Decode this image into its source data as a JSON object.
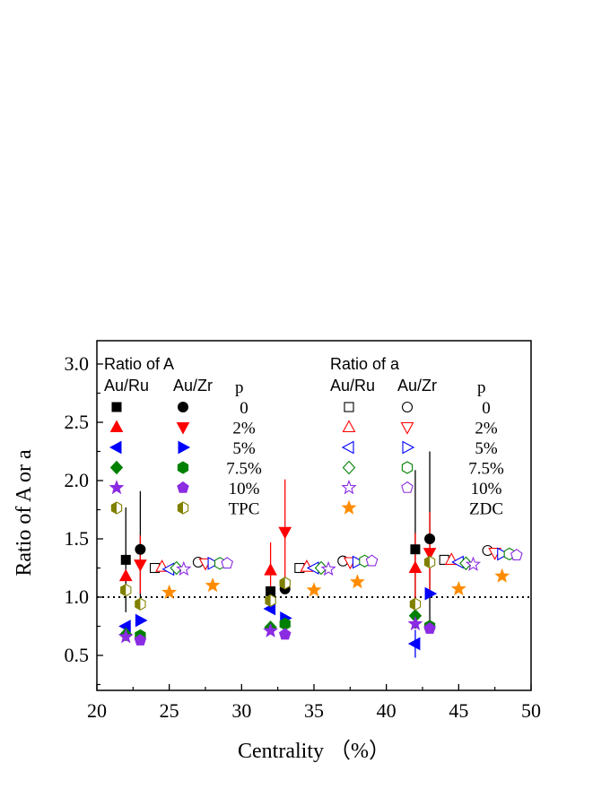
{
  "chart_data": {
    "type": "scatter",
    "xlabel": "Centrality （%）",
    "ylabel": "Ratio of A or a",
    "xlim": [
      20,
      50
    ],
    "ylim": [
      0.2,
      3.2
    ],
    "xticks": [
      20,
      25,
      30,
      35,
      40,
      45,
      50
    ],
    "yticks": [
      0.5,
      1.0,
      1.5,
      2.0,
      2.5,
      3.0
    ],
    "xtick_labels": [
      "20",
      "25",
      "30",
      "35",
      "40",
      "45",
      "50"
    ],
    "ytick_labels": [
      "0.5",
      "1.0",
      "1.5",
      "2.0",
      "2.5",
      "3.0"
    ],
    "reference_line": {
      "y": 1.0,
      "style": "dotted"
    },
    "grid": false,
    "legend_A": {
      "title": "Ratio of A",
      "col1": "Au/Ru",
      "col2": "Au/Zr",
      "col3": "p",
      "rows": [
        {
          "label": "0",
          "color": "#000000",
          "ru_marker": "square",
          "zr_marker": "circle"
        },
        {
          "label": "2%",
          "color": "#ff0000",
          "ru_marker": "triangle-up",
          "zr_marker": "triangle-down"
        },
        {
          "label": "5%",
          "color": "#0000ff",
          "ru_marker": "triangle-left",
          "zr_marker": "triangle-right"
        },
        {
          "label": "7.5%",
          "color": "#008000",
          "ru_marker": "diamond",
          "zr_marker": "hexagon"
        },
        {
          "label": "10%",
          "color": "#8b2be2",
          "ru_marker": "star",
          "zr_marker": "pentagon"
        },
        {
          "label": "TPC",
          "color": "#808000",
          "ru_marker": "hexagon-half",
          "zr_marker": "hexagon-half"
        }
      ]
    },
    "legend_a": {
      "title": "Ratio of a",
      "col1": "Au/Ru",
      "col2": "Au/Zr",
      "col3": "p",
      "rows": [
        {
          "label": "0",
          "color": "#000000",
          "ru_marker": "square",
          "zr_marker": "circle"
        },
        {
          "label": "2%",
          "color": "#ff0000",
          "ru_marker": "triangle-up",
          "zr_marker": "triangle-down"
        },
        {
          "label": "5%",
          "color": "#0000ff",
          "ru_marker": "triangle-left",
          "zr_marker": "triangle-right"
        },
        {
          "label": "7.5%",
          "color": "#008000",
          "ru_marker": "diamond",
          "zr_marker": "hexagon"
        },
        {
          "label": "10%",
          "color": "#8b2be2",
          "ru_marker": "star",
          "zr_marker": "pentagon"
        },
        {
          "label": "ZDC",
          "color": "#ff8c00",
          "ru_marker": "star",
          "zr_marker": ""
        }
      ]
    },
    "points": [
      {
        "series": "A Au/Ru p=0",
        "marker": "square",
        "fill": "solid",
        "color": "#000000",
        "x": 22,
        "y": 1.32,
        "err": 0.45
      },
      {
        "series": "A Au/Ru p=2%",
        "marker": "triangle-up",
        "fill": "solid",
        "color": "#ff0000",
        "x": 22,
        "y": 1.18
      },
      {
        "series": "A Au/Ru p=5%",
        "marker": "triangle-left",
        "fill": "solid",
        "color": "#0000ff",
        "x": 22,
        "y": 0.75
      },
      {
        "series": "A Au/Ru p=7.5%",
        "marker": "diamond",
        "fill": "solid",
        "color": "#008000",
        "x": 22,
        "y": 0.68
      },
      {
        "series": "A Au/Ru p=10%",
        "marker": "star",
        "fill": "solid",
        "color": "#8b2be2",
        "x": 22,
        "y": 0.66
      },
      {
        "series": "A Au/Ru TPC",
        "marker": "hexagon-half",
        "fill": "half",
        "color": "#808000",
        "x": 22,
        "y": 1.06
      },
      {
        "series": "A Au/Zr p=0",
        "marker": "circle",
        "fill": "solid",
        "color": "#000000",
        "x": 23,
        "y": 1.41,
        "err": 0.5
      },
      {
        "series": "A Au/Zr p=2%",
        "marker": "triangle-down",
        "fill": "solid",
        "color": "#ff0000",
        "x": 23,
        "y": 1.28,
        "err": 0.25
      },
      {
        "series": "A Au/Zr p=5%",
        "marker": "triangle-right",
        "fill": "solid",
        "color": "#0000ff",
        "x": 23,
        "y": 0.8
      },
      {
        "series": "A Au/Zr p=7.5%",
        "marker": "hexagon",
        "fill": "solid",
        "color": "#008000",
        "x": 23,
        "y": 0.67
      },
      {
        "series": "A Au/Zr p=10%",
        "marker": "pentagon",
        "fill": "solid",
        "color": "#8b2be2",
        "x": 23,
        "y": 0.63
      },
      {
        "series": "A Au/Zr TPC",
        "marker": "hexagon-half",
        "fill": "half",
        "color": "#808000",
        "x": 23,
        "y": 0.94
      },
      {
        "series": "a Au/Ru p=0",
        "marker": "square",
        "fill": "open",
        "color": "#000000",
        "x": 24,
        "y": 1.25
      },
      {
        "series": "a Au/Ru p=2%",
        "marker": "triangle-up",
        "fill": "open",
        "color": "#ff0000",
        "x": 24.5,
        "y": 1.26
      },
      {
        "series": "a Au/Ru p=5%",
        "marker": "triangle-left",
        "fill": "open",
        "color": "#0000ff",
        "x": 25,
        "y": 1.24
      },
      {
        "series": "a Au/Ru p=7.5%",
        "marker": "diamond",
        "fill": "open",
        "color": "#008000",
        "x": 25.5,
        "y": 1.25
      },
      {
        "series": "a Au/Ru p=10%",
        "marker": "star",
        "fill": "open",
        "color": "#8b2be2",
        "x": 26,
        "y": 1.24
      },
      {
        "series": "a Au/Ru ZDC",
        "marker": "star",
        "fill": "solid",
        "color": "#ff8c00",
        "x": 25,
        "y": 1.04
      },
      {
        "series": "a Au/Zr p=0",
        "marker": "circle",
        "fill": "open",
        "color": "#000000",
        "x": 27,
        "y": 1.3
      },
      {
        "series": "a Au/Zr p=2%",
        "marker": "triangle-down",
        "fill": "open",
        "color": "#ff0000",
        "x": 27.5,
        "y": 1.29
      },
      {
        "series": "a Au/Zr p=5%",
        "marker": "triangle-right",
        "fill": "open",
        "color": "#0000ff",
        "x": 28,
        "y": 1.29
      },
      {
        "series": "a Au/Zr p=7.5%",
        "marker": "hexagon",
        "fill": "open",
        "color": "#008000",
        "x": 28.5,
        "y": 1.29
      },
      {
        "series": "a Au/Zr p=10%",
        "marker": "pentagon",
        "fill": "open",
        "color": "#8b2be2",
        "x": 29,
        "y": 1.29
      },
      {
        "series": "a Au/Zr ZDC",
        "marker": "star",
        "fill": "solid",
        "color": "#ff8c00",
        "x": 28,
        "y": 1.1
      },
      {
        "series": "A Au/Ru p=0",
        "marker": "square",
        "fill": "solid",
        "color": "#000000",
        "x": 32,
        "y": 1.05
      },
      {
        "series": "A Au/Ru p=2%",
        "marker": "triangle-up",
        "fill": "solid",
        "color": "#ff0000",
        "x": 32,
        "y": 1.23,
        "err": 0.24
      },
      {
        "series": "A Au/Ru p=5%",
        "marker": "triangle-left",
        "fill": "solid",
        "color": "#0000ff",
        "x": 32,
        "y": 0.9
      },
      {
        "series": "A Au/Ru p=7.5%",
        "marker": "diamond",
        "fill": "solid",
        "color": "#008000",
        "x": 32,
        "y": 0.74
      },
      {
        "series": "A Au/Ru p=10%",
        "marker": "star",
        "fill": "solid",
        "color": "#8b2be2",
        "x": 32,
        "y": 0.71
      },
      {
        "series": "A Au/Ru TPC",
        "marker": "hexagon-half",
        "fill": "half",
        "color": "#808000",
        "x": 32,
        "y": 0.97
      },
      {
        "series": "A Au/Zr p=0",
        "marker": "circle",
        "fill": "solid",
        "color": "#000000",
        "x": 33,
        "y": 1.07
      },
      {
        "series": "A Au/Zr p=2%",
        "marker": "triangle-down",
        "fill": "solid",
        "color": "#ff0000",
        "x": 33,
        "y": 1.56,
        "err": 0.45
      },
      {
        "series": "A Au/Zr p=5%",
        "marker": "triangle-right",
        "fill": "solid",
        "color": "#0000ff",
        "x": 33,
        "y": 0.82
      },
      {
        "series": "A Au/Zr p=7.5%",
        "marker": "hexagon",
        "fill": "solid",
        "color": "#008000",
        "x": 33,
        "y": 0.77
      },
      {
        "series": "A Au/Zr p=10%",
        "marker": "pentagon",
        "fill": "solid",
        "color": "#8b2be2",
        "x": 33,
        "y": 0.68
      },
      {
        "series": "A Au/Zr TPC",
        "marker": "hexagon-half",
        "fill": "half",
        "color": "#808000",
        "x": 33,
        "y": 1.12
      },
      {
        "series": "a Au/Ru p=0",
        "marker": "square",
        "fill": "open",
        "color": "#000000",
        "x": 34,
        "y": 1.25
      },
      {
        "series": "a Au/Ru p=2%",
        "marker": "triangle-up",
        "fill": "open",
        "color": "#ff0000",
        "x": 34.5,
        "y": 1.26
      },
      {
        "series": "a Au/Ru p=5%",
        "marker": "triangle-left",
        "fill": "open",
        "color": "#0000ff",
        "x": 35,
        "y": 1.25
      },
      {
        "series": "a Au/Ru p=7.5%",
        "marker": "diamond",
        "fill": "open",
        "color": "#008000",
        "x": 35.5,
        "y": 1.25
      },
      {
        "series": "a Au/Ru p=10%",
        "marker": "star",
        "fill": "open",
        "color": "#8b2be2",
        "x": 36,
        "y": 1.24
      },
      {
        "series": "a Au/Ru ZDC",
        "marker": "star",
        "fill": "solid",
        "color": "#ff8c00",
        "x": 35,
        "y": 1.06
      },
      {
        "series": "a Au/Zr p=0",
        "marker": "circle",
        "fill": "open",
        "color": "#000000",
        "x": 37,
        "y": 1.31
      },
      {
        "series": "a Au/Zr p=2%",
        "marker": "triangle-down",
        "fill": "open",
        "color": "#ff0000",
        "x": 37.5,
        "y": 1.3
      },
      {
        "series": "a Au/Zr p=5%",
        "marker": "triangle-right",
        "fill": "open",
        "color": "#0000ff",
        "x": 38,
        "y": 1.3
      },
      {
        "series": "a Au/Zr p=7.5%",
        "marker": "hexagon",
        "fill": "open",
        "color": "#008000",
        "x": 38.5,
        "y": 1.31
      },
      {
        "series": "a Au/Zr p=10%",
        "marker": "pentagon",
        "fill": "open",
        "color": "#8b2be2",
        "x": 39,
        "y": 1.31
      },
      {
        "series": "a Au/Zr ZDC",
        "marker": "star",
        "fill": "solid",
        "color": "#ff8c00",
        "x": 38,
        "y": 1.13
      },
      {
        "series": "A Au/Ru p=0",
        "marker": "square",
        "fill": "solid",
        "color": "#000000",
        "x": 42,
        "y": 1.41,
        "err": 0.68
      },
      {
        "series": "A Au/Ru p=2%",
        "marker": "triangle-up",
        "fill": "solid",
        "color": "#ff0000",
        "x": 42,
        "y": 1.25,
        "err": 0.3
      },
      {
        "series": "A Au/Ru p=5%",
        "marker": "triangle-left",
        "fill": "solid",
        "color": "#0000ff",
        "x": 42,
        "y": 0.6,
        "err": 0.12
      },
      {
        "series": "A Au/Ru p=7.5%",
        "marker": "diamond",
        "fill": "solid",
        "color": "#008000",
        "x": 42,
        "y": 0.84
      },
      {
        "series": "A Au/Ru p=10%",
        "marker": "star",
        "fill": "solid",
        "color": "#8b2be2",
        "x": 42,
        "y": 0.77
      },
      {
        "series": "A Au/Ru TPC",
        "marker": "hexagon-half",
        "fill": "half",
        "color": "#808000",
        "x": 42,
        "y": 0.94
      },
      {
        "series": "A Au/Zr p=0",
        "marker": "circle",
        "fill": "solid",
        "color": "#000000",
        "x": 43,
        "y": 1.5,
        "err": 0.75
      },
      {
        "series": "A Au/Zr p=2%",
        "marker": "triangle-down",
        "fill": "solid",
        "color": "#ff0000",
        "x": 43,
        "y": 1.38,
        "err": 0.35
      },
      {
        "series": "A Au/Zr p=5%",
        "marker": "triangle-right",
        "fill": "solid",
        "color": "#0000ff",
        "x": 43,
        "y": 1.03
      },
      {
        "series": "A Au/Zr p=7.5%",
        "marker": "hexagon",
        "fill": "solid",
        "color": "#008000",
        "x": 43,
        "y": 0.75
      },
      {
        "series": "A Au/Zr p=10%",
        "marker": "pentagon",
        "fill": "solid",
        "color": "#8b2be2",
        "x": 43,
        "y": 0.73
      },
      {
        "series": "A Au/Zr TPC",
        "marker": "hexagon-half",
        "fill": "half",
        "color": "#808000",
        "x": 43,
        "y": 1.3
      },
      {
        "series": "a Au/Ru p=0",
        "marker": "square",
        "fill": "open",
        "color": "#000000",
        "x": 44,
        "y": 1.32
      },
      {
        "series": "a Au/Ru p=2%",
        "marker": "triangle-up",
        "fill": "open",
        "color": "#ff0000",
        "x": 44.5,
        "y": 1.32
      },
      {
        "series": "a Au/Ru p=5%",
        "marker": "triangle-left",
        "fill": "open",
        "color": "#0000ff",
        "x": 45,
        "y": 1.3
      },
      {
        "series": "a Au/Ru p=7.5%",
        "marker": "diamond",
        "fill": "open",
        "color": "#008000",
        "x": 45.5,
        "y": 1.29
      },
      {
        "series": "a Au/Ru p=10%",
        "marker": "star",
        "fill": "open",
        "color": "#8b2be2",
        "x": 46,
        "y": 1.28
      },
      {
        "series": "a Au/Ru ZDC",
        "marker": "star",
        "fill": "solid",
        "color": "#ff8c00",
        "x": 45,
        "y": 1.07
      },
      {
        "series": "a Au/Zr p=0",
        "marker": "circle",
        "fill": "open",
        "color": "#000000",
        "x": 47,
        "y": 1.4
      },
      {
        "series": "a Au/Zr p=2%",
        "marker": "triangle-down",
        "fill": "open",
        "color": "#ff0000",
        "x": 47.5,
        "y": 1.38
      },
      {
        "series": "a Au/Zr p=5%",
        "marker": "triangle-right",
        "fill": "open",
        "color": "#0000ff",
        "x": 48,
        "y": 1.37
      },
      {
        "series": "a Au/Zr p=7.5%",
        "marker": "hexagon",
        "fill": "open",
        "color": "#008000",
        "x": 48.5,
        "y": 1.37
      },
      {
        "series": "a Au/Zr p=10%",
        "marker": "pentagon",
        "fill": "open",
        "color": "#8b2be2",
        "x": 49,
        "y": 1.36
      },
      {
        "series": "a Au/Zr ZDC",
        "marker": "star",
        "fill": "solid",
        "color": "#ff8c00",
        "x": 48,
        "y": 1.18
      }
    ]
  }
}
